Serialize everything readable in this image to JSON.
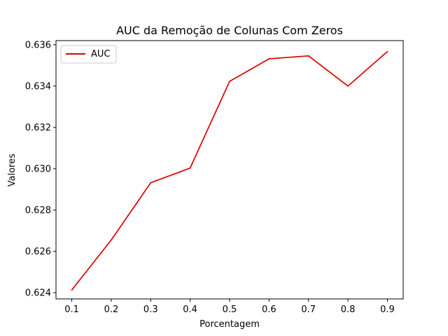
{
  "chart_data": {
    "type": "line",
    "title": "AUC da Remoção de Colunas Com Zeros",
    "xlabel": "Porcentagem",
    "ylabel": "Valores",
    "x": [
      0.1,
      0.2,
      0.3,
      0.4,
      0.5,
      0.6,
      0.7,
      0.8,
      0.9
    ],
    "x_tick_labels": [
      "0.1",
      "0.2",
      "0.3",
      "0.4",
      "0.5",
      "0.6",
      "0.7",
      "0.8",
      "0.9"
    ],
    "y_ticks": [
      0.624,
      0.626,
      0.628,
      0.63,
      0.632,
      0.634,
      0.636
    ],
    "y_tick_labels": [
      "0.624",
      "0.626",
      "0.628",
      "0.630",
      "0.632",
      "0.634",
      "0.636"
    ],
    "xlim": [
      0.06,
      0.94
    ],
    "ylim": [
      0.6237,
      0.6362
    ],
    "grid": false,
    "legend_position": "upper-left",
    "series": [
      {
        "name": "AUC",
        "color": "#e00000",
        "values": [
          0.62413,
          0.62655,
          0.62932,
          0.63003,
          0.63423,
          0.63532,
          0.63546,
          0.634,
          0.63567
        ]
      }
    ]
  }
}
